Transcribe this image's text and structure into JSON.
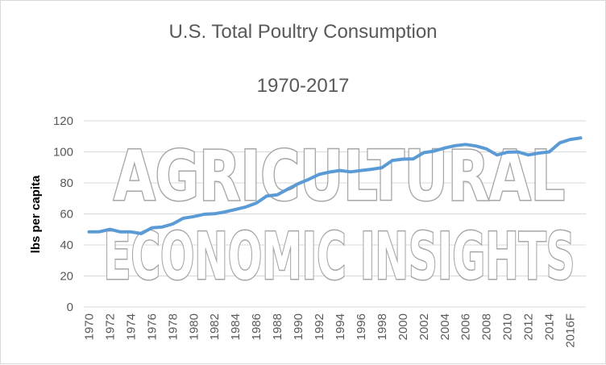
{
  "chart_data": {
    "type": "line",
    "title": "U.S. Total Poultry Consumption",
    "subtitle": "1970-2017",
    "ylabel": "lbs per capita",
    "ylim": [
      0,
      120
    ],
    "yticks": [
      0,
      20,
      40,
      60,
      80,
      100,
      120
    ],
    "grid": true,
    "legend": "none",
    "x_tick_labels": [
      "1970",
      "1972",
      "1974",
      "1976",
      "1978",
      "1980",
      "1982",
      "1984",
      "1986",
      "1988",
      "1990",
      "1992",
      "1994",
      "1996",
      "1998",
      "2000",
      "2002",
      "2004",
      "2006",
      "2008",
      "2010",
      "2012",
      "2014",
      "2016F"
    ],
    "categories": [
      "1970",
      "1971",
      "1972",
      "1973",
      "1974",
      "1975",
      "1976",
      "1977",
      "1978",
      "1979",
      "1980",
      "1981",
      "1982",
      "1983",
      "1984",
      "1985",
      "1986",
      "1987",
      "1988",
      "1989",
      "1990",
      "1991",
      "1992",
      "1993",
      "1994",
      "1995",
      "1996",
      "1997",
      "1998",
      "1999",
      "2000",
      "2001",
      "2002",
      "2003",
      "2004",
      "2005",
      "2006",
      "2007",
      "2008",
      "2009",
      "2010",
      "2011",
      "2012",
      "2013",
      "2014",
      "2015",
      "2016F",
      "2017"
    ],
    "series": [
      {
        "color": "#5b9bd5",
        "values": [
          48.4,
          48.5,
          50.1,
          48.4,
          48.4,
          47.3,
          51.0,
          51.6,
          53.5,
          57.2,
          58.3,
          59.8,
          60.1,
          61.3,
          62.9,
          64.5,
          67.0,
          71.6,
          72.3,
          76.0,
          79.5,
          82.3,
          85.5,
          87.0,
          88.0,
          87.1,
          88.0,
          88.8,
          89.8,
          94.5,
          95.3,
          95.5,
          99.5,
          100.5,
          102.5,
          104.0,
          104.8,
          103.8,
          101.9,
          98.0,
          99.8,
          100.0,
          98.0,
          99.2,
          100.0,
          105.8,
          108.0,
          109.0
        ]
      }
    ]
  },
  "watermark": {
    "line1": "AGRICULTURAL",
    "line2": "ECONOMIC INSIGHTS",
    "color": "#a6a6a6"
  },
  "colors": {
    "gridline": "#d9d9d9",
    "text": "#595959"
  }
}
